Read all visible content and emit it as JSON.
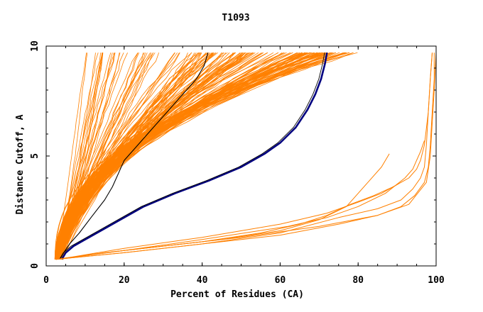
{
  "chart_data": {
    "type": "line",
    "title": "T1093",
    "xlabel": "Percent of Residues (CA)",
    "ylabel": "Distance Cutoff, A",
    "xlim": [
      0,
      100
    ],
    "ylim": [
      0,
      10
    ],
    "x_ticks": [
      "0",
      "20",
      "40",
      "60",
      "80",
      "100"
    ],
    "y_ticks": [
      "0",
      "5",
      "10"
    ],
    "grid": false,
    "legend": "none",
    "colors": {
      "models": "#ff8000",
      "best": "#000080",
      "reference": "#000000",
      "axes": "#000000"
    },
    "series": [
      {
        "role": "best",
        "x": [
          4,
          5,
          7,
          10,
          14,
          19,
          25,
          33,
          42,
          50,
          56,
          60,
          64,
          67,
          69,
          70.5,
          71.5,
          72
        ],
        "y": [
          0.3,
          0.6,
          0.9,
          1.2,
          1.6,
          2.1,
          2.7,
          3.3,
          3.9,
          4.5,
          5.1,
          5.6,
          6.3,
          7.1,
          7.8,
          8.5,
          9.2,
          9.7
        ]
      },
      {
        "role": "reference",
        "x": [
          3.5,
          4.5,
          6,
          8.5,
          11.5,
          15,
          17,
          18.5,
          20,
          23,
          27,
          31,
          35,
          38.5,
          40.5,
          41.5
        ],
        "y": [
          0.3,
          0.6,
          1.0,
          1.5,
          2.2,
          3.0,
          3.6,
          4.2,
          4.8,
          5.4,
          6.2,
          7.0,
          7.8,
          8.5,
          9.1,
          9.7
        ]
      },
      {
        "role": "model-far",
        "x": [
          2.5,
          15,
          30,
          45,
          60,
          70,
          77,
          80,
          83,
          86,
          88
        ],
        "y": [
          0.3,
          0.6,
          0.9,
          1.2,
          1.6,
          2.1,
          2.7,
          3.3,
          3.9,
          4.5,
          5.1
        ]
      },
      {
        "role": "model-far",
        "x": [
          2.5,
          20,
          40,
          60,
          75,
          85,
          91,
          94,
          96,
          97,
          97.5,
          98,
          98.5,
          99
        ],
        "y": [
          0.3,
          0.6,
          1.0,
          1.5,
          2.2,
          2.6,
          3.0,
          3.5,
          4.0,
          4.5,
          5.5,
          7.0,
          8.5,
          9.7
        ]
      },
      {
        "role": "model-far",
        "x": [
          2.5,
          20,
          40,
          60,
          75,
          85,
          91,
          94.5,
          97,
          98,
          98.5,
          99,
          99.5,
          99.5
        ],
        "y": [
          0.3,
          0.6,
          1.0,
          1.4,
          1.9,
          2.3,
          2.7,
          3.2,
          3.8,
          4.5,
          5.5,
          7.0,
          8.5,
          9.7
        ]
      },
      {
        "role": "model-far",
        "x": [
          2.5,
          20,
          40,
          55,
          65,
          72,
          78,
          84,
          89,
          93,
          95,
          96,
          97,
          98,
          98.5,
          99
        ],
        "y": [
          0.3,
          0.7,
          1.1,
          1.5,
          1.9,
          2.3,
          2.8,
          3.2,
          3.6,
          4.0,
          4.4,
          4.8,
          5.5,
          7.0,
          8.5,
          9.7
        ]
      },
      {
        "role": "model-far",
        "x": [
          2.5,
          15,
          30,
          50,
          70,
          85,
          93,
          97.5,
          98.5,
          99,
          99.5,
          100
        ],
        "y": [
          0.3,
          0.6,
          0.9,
          1.3,
          1.8,
          2.3,
          2.8,
          3.8,
          5.0,
          6.5,
          8.0,
          9.7
        ]
      },
      {
        "role": "model-far",
        "x": [
          2.5,
          20,
          40,
          62,
          72,
          80,
          87,
          92,
          94,
          95,
          96,
          97
        ],
        "y": [
          0.3,
          0.7,
          1.2,
          1.8,
          2.2,
          2.7,
          3.3,
          4.0,
          4.4,
          4.8,
          5.2,
          5.7
        ]
      },
      {
        "role": "model-far",
        "x": [
          3,
          20,
          40,
          60,
          72,
          80,
          86,
          90
        ],
        "y": [
          0.3,
          0.8,
          1.3,
          1.9,
          2.4,
          2.9,
          3.3,
          3.7
        ]
      }
    ]
  }
}
